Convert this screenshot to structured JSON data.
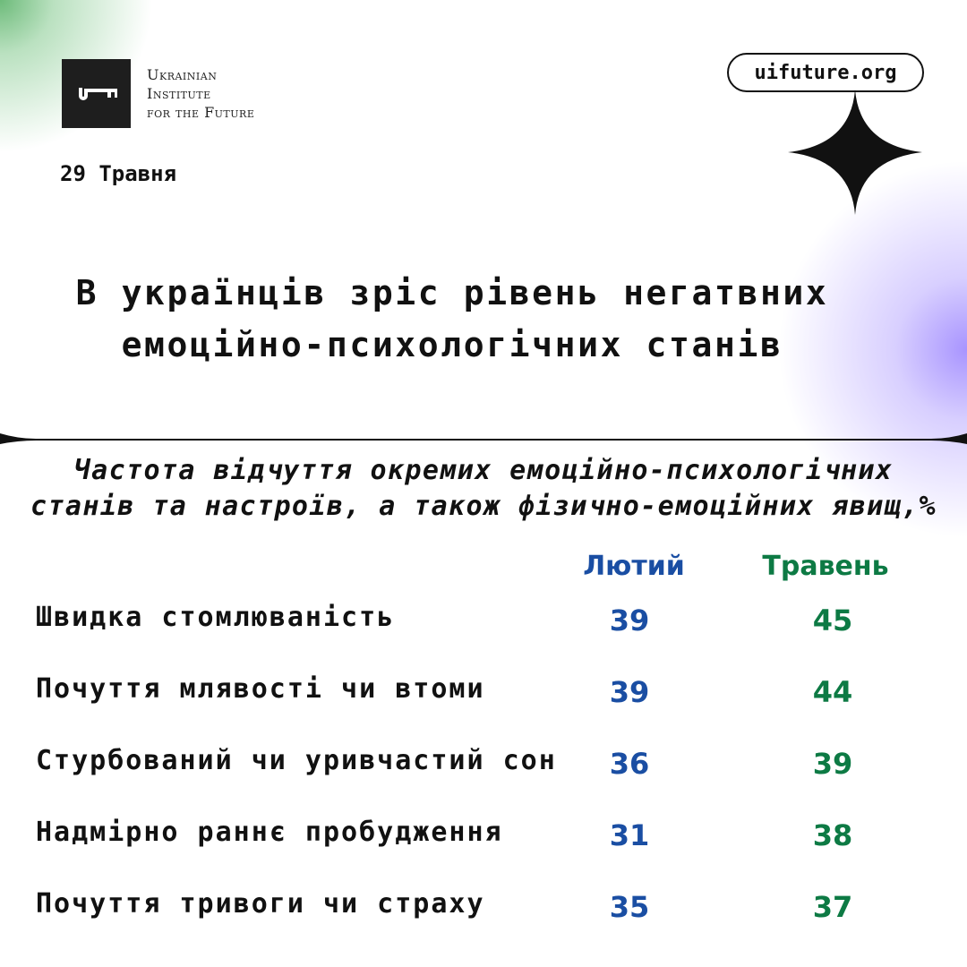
{
  "brand": {
    "logo_text": [
      "Ukrainian",
      "Institute",
      "for the Future"
    ],
    "url": "uifuture.org"
  },
  "date": "29 Травня",
  "title": [
    "В українців зріс рівень негатвних",
    "емоційно-психологічних станів"
  ],
  "subtitle": [
    "Частота відчуття окремих емоційно-психологічних",
    "станів та настроїв, а також фізично-емоційних явищ,%"
  ],
  "colors": {
    "february": "#1a4ea3",
    "may": "#0d7a44",
    "green_glow": "#6dbb7a",
    "purple_glow": "#a894ff"
  },
  "chart_data": {
    "type": "table",
    "title": "Частота відчуття окремих емоційно-психологічних станів та настроїв, а також фізично-емоційних явищ,%",
    "columns": [
      "Лютий",
      "Травень"
    ],
    "rows": [
      {
        "label": "Швидка стомлюваність",
        "values": [
          39,
          45
        ]
      },
      {
        "label": "Почуття млявості чи втоми",
        "values": [
          39,
          44
        ]
      },
      {
        "label": "Стурбований чи уривчастий сон",
        "values": [
          36,
          39
        ]
      },
      {
        "label": "Надмірно раннє пробудження",
        "values": [
          31,
          38
        ]
      },
      {
        "label": "Почуття тривоги чи страху",
        "values": [
          35,
          37
        ]
      }
    ]
  }
}
